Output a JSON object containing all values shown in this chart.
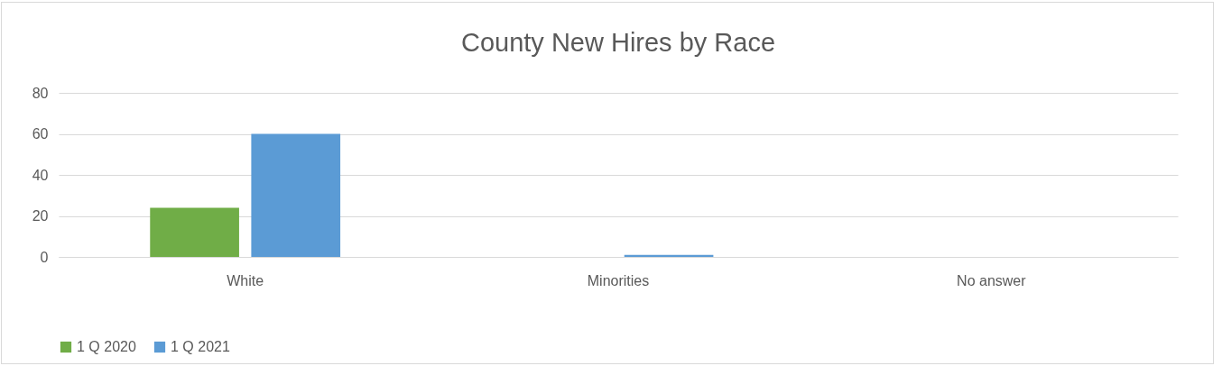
{
  "chart_data": {
    "type": "bar",
    "title": "County New Hires by Race",
    "categories": [
      "White",
      "Minorities",
      "No answer"
    ],
    "series": [
      {
        "name": "1 Q 2020",
        "color": "#70ad47",
        "values": [
          24,
          0,
          0
        ]
      },
      {
        "name": "1 Q 2021",
        "color": "#5b9bd5",
        "values": [
          60,
          1,
          0
        ]
      }
    ],
    "ylim": [
      0,
      80
    ],
    "yticks": [
      0,
      20,
      40,
      60,
      80
    ],
    "grid": "y",
    "legend": "bottom"
  }
}
